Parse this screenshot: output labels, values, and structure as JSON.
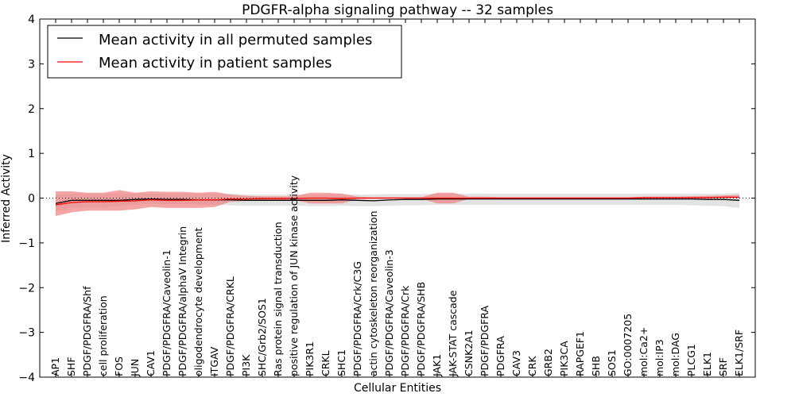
{
  "chart_data": {
    "type": "line",
    "title": "PDGFR-alpha signaling pathway -- 32 samples",
    "xlabel": "Cellular Entities",
    "ylabel": "Inferred Activity",
    "ylim": [
      -4,
      4
    ],
    "yticks": [
      "−4",
      "−3",
      "−2",
      "−1",
      "0",
      "1",
      "2",
      "3",
      "4"
    ],
    "yticks_values": [
      -4,
      -3,
      -2,
      -1,
      0,
      1,
      2,
      3,
      4
    ],
    "grid": false,
    "legend_position": "top-left",
    "categories": [
      "AP1",
      "SHF",
      "PDGF/PDGFRA/Shf",
      "cell proliferation",
      "FOS",
      "JUN",
      "CAV1",
      "PDGF/PDGFRA/Caveolin-1",
      "PDGF/PDGFRA/alphaV Integrin",
      "oligodendrocyte development",
      "ITGAV",
      "PDGF/PDGFRA/CRKL",
      "PI3K",
      "SHC/Grb2/SOS1",
      "Ras protein signal transduction",
      "positive regulation of JUN kinase activity",
      "PIK3R1",
      "CRKL",
      "SHC1",
      "PDGF/PDGFRA/Crk/C3G",
      "actin cytoskeleton reorganization",
      "PDGF/PDGFRA/Caveolin-3",
      "PDGF/PDGFRA/Crk",
      "PDGF/PDGFRA/SHB",
      "JAK1",
      "JAK-STAT cascade",
      "CSNK2A1",
      "PDGF/PDGFRA",
      "PDGFRA",
      "CAV3",
      "CRK",
      "GRB2",
      "PIK3CA",
      "RAPGEF1",
      "SHB",
      "SOS1",
      "GO:0007205",
      "mol:Ca2+",
      "mol:IP3",
      "mol:DAG",
      "PLCG1",
      "ELK1",
      "SRF",
      "ELK1/SRF"
    ],
    "series": [
      {
        "name": "Mean activity in all permuted samples",
        "color": "#000000",
        "band_color": "#cccccc",
        "values": [
          -0.12,
          -0.05,
          -0.05,
          -0.05,
          -0.05,
          -0.03,
          -0.02,
          -0.03,
          -0.03,
          -0.04,
          -0.04,
          -0.04,
          -0.05,
          -0.05,
          -0.05,
          -0.05,
          -0.05,
          -0.05,
          -0.04,
          -0.05,
          -0.06,
          -0.04,
          -0.03,
          -0.03,
          -0.02,
          -0.02,
          -0.02,
          -0.02,
          -0.02,
          -0.02,
          -0.02,
          -0.02,
          -0.02,
          -0.02,
          -0.02,
          -0.02,
          -0.02,
          -0.02,
          -0.02,
          -0.02,
          -0.02,
          -0.03,
          -0.03,
          -0.05
        ],
        "lower": [
          -0.3,
          -0.22,
          -0.2,
          -0.2,
          -0.18,
          -0.15,
          -0.13,
          -0.14,
          -0.14,
          -0.15,
          -0.15,
          -0.16,
          -0.17,
          -0.17,
          -0.17,
          -0.17,
          -0.18,
          -0.18,
          -0.17,
          -0.18,
          -0.18,
          -0.17,
          -0.16,
          -0.16,
          -0.15,
          -0.15,
          -0.15,
          -0.15,
          -0.15,
          -0.15,
          -0.15,
          -0.15,
          -0.15,
          -0.15,
          -0.15,
          -0.15,
          -0.15,
          -0.15,
          -0.15,
          -0.15,
          -0.16,
          -0.17,
          -0.18,
          -0.22
        ],
        "upper": [
          0.08,
          0.1,
          0.1,
          0.1,
          0.1,
          0.1,
          0.1,
          0.1,
          0.1,
          0.1,
          0.1,
          0.1,
          0.08,
          0.08,
          0.08,
          0.08,
          0.08,
          0.08,
          0.09,
          0.08,
          0.08,
          0.09,
          0.09,
          0.09,
          0.1,
          0.1,
          0.1,
          0.1,
          0.1,
          0.1,
          0.1,
          0.1,
          0.1,
          0.1,
          0.1,
          0.1,
          0.1,
          0.1,
          0.1,
          0.1,
          0.1,
          0.1,
          0.1,
          0.12
        ]
      },
      {
        "name": "Mean activity in patient samples",
        "color": "#ff0000",
        "band_color": "#f08080",
        "values": [
          -0.15,
          -0.1,
          -0.08,
          -0.08,
          -0.07,
          -0.06,
          -0.04,
          -0.05,
          -0.05,
          -0.04,
          -0.04,
          -0.02,
          -0.02,
          -0.01,
          -0.01,
          -0.01,
          0.0,
          0.0,
          -0.01,
          0.0,
          0.0,
          0.0,
          0.0,
          0.0,
          0.0,
          0.0,
          0.0,
          0.0,
          0.0,
          0.0,
          0.0,
          0.0,
          0.0,
          0.0,
          0.0,
          0.0,
          0.0,
          0.01,
          0.01,
          0.01,
          0.01,
          0.01,
          0.02,
          0.02
        ],
        "lower": [
          -0.4,
          -0.32,
          -0.28,
          -0.28,
          -0.28,
          -0.25,
          -0.2,
          -0.22,
          -0.22,
          -0.22,
          -0.2,
          -0.08,
          -0.06,
          -0.04,
          -0.04,
          -0.04,
          -0.12,
          -0.12,
          -0.12,
          -0.02,
          -0.01,
          -0.01,
          -0.01,
          -0.01,
          -0.12,
          -0.12,
          -0.02,
          -0.02,
          -0.02,
          -0.01,
          -0.01,
          -0.01,
          -0.01,
          -0.01,
          -0.01,
          -0.01,
          -0.01,
          0.0,
          0.0,
          0.0,
          0.0,
          0.0,
          0.0,
          0.0
        ],
        "upper": [
          0.15,
          0.15,
          0.12,
          0.12,
          0.18,
          0.12,
          0.15,
          0.14,
          0.14,
          0.12,
          0.14,
          0.08,
          0.05,
          0.04,
          0.04,
          0.04,
          0.12,
          0.12,
          0.1,
          0.03,
          0.02,
          0.02,
          0.02,
          0.02,
          0.12,
          0.12,
          0.03,
          0.03,
          0.02,
          0.02,
          0.02,
          0.02,
          0.02,
          0.02,
          0.02,
          0.02,
          0.02,
          0.03,
          0.03,
          0.03,
          0.04,
          0.05,
          0.06,
          0.07
        ]
      }
    ],
    "reference_line": {
      "y": 0,
      "style": "dotted"
    }
  }
}
